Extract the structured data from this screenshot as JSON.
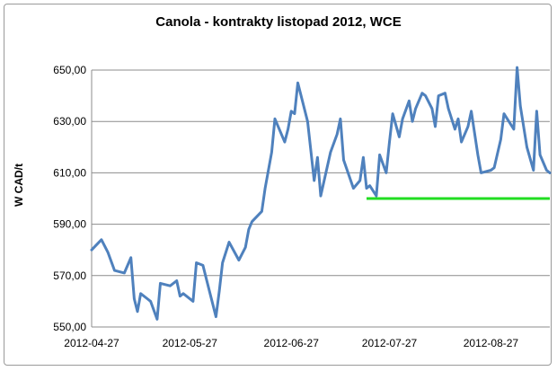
{
  "chart_data": {
    "type": "line",
    "title": "Canola - kontrakty listopad 2012, WCE",
    "ylabel": "W CAD/t",
    "ylim": [
      550,
      650
    ],
    "yticks": [
      "550,00",
      "570,00",
      "590,00",
      "610,00",
      "630,00",
      "650,00"
    ],
    "xticks": [
      "2012-04-27",
      "2012-05-27",
      "2012-06-27",
      "2012-07-27",
      "2012-08-27"
    ],
    "grid": "horizontal",
    "line_color": "#4f81bd",
    "reference_line": {
      "value": 600,
      "from": "2012-07-20",
      "to": "2012-09-14",
      "color": "#22dd22"
    },
    "series": [
      {
        "x": [
          "2012-04-27",
          "2012-04-30",
          "2012-05-02",
          "2012-05-04",
          "2012-05-07",
          "2012-05-09",
          "2012-05-10",
          "2012-05-11",
          "2012-05-12",
          "2012-05-14",
          "2012-05-15",
          "2012-05-17",
          "2012-05-18",
          "2012-05-21",
          "2012-05-23",
          "2012-05-24",
          "2012-05-25",
          "2012-05-28",
          "2012-05-29",
          "2012-05-31",
          "2012-06-01",
          "2012-06-04",
          "2012-06-05",
          "2012-06-06",
          "2012-06-08",
          "2012-06-11",
          "2012-06-13",
          "2012-06-14",
          "2012-06-15",
          "2012-06-18",
          "2012-06-19",
          "2012-06-21",
          "2012-06-22",
          "2012-06-25",
          "2012-06-26",
          "2012-06-27",
          "2012-06-28",
          "2012-06-29",
          "2012-07-02",
          "2012-07-04",
          "2012-07-05",
          "2012-07-06",
          "2012-07-09",
          "2012-07-11",
          "2012-07-12",
          "2012-07-13",
          "2012-07-16",
          "2012-07-18",
          "2012-07-19",
          "2012-07-20",
          "2012-07-21",
          "2012-07-23",
          "2012-07-24",
          "2012-07-26",
          "2012-07-27",
          "2012-07-28",
          "2012-07-30",
          "2012-07-31",
          "2012-08-02",
          "2012-08-03",
          "2012-08-04",
          "2012-08-06",
          "2012-08-07",
          "2012-08-09",
          "2012-08-10",
          "2012-08-11",
          "2012-08-13",
          "2012-08-14",
          "2012-08-16",
          "2012-08-17",
          "2012-08-18",
          "2012-08-20",
          "2012-08-21",
          "2012-08-23",
          "2012-08-24",
          "2012-08-27",
          "2012-08-28",
          "2012-08-30",
          "2012-08-31",
          "2012-09-03",
          "2012-09-04",
          "2012-09-05",
          "2012-09-07",
          "2012-09-09",
          "2012-09-10",
          "2012-09-11",
          "2012-09-13",
          "2012-09-14"
        ],
        "values": [
          580,
          584,
          579,
          572,
          571,
          577,
          561,
          556,
          563,
          561,
          560,
          553,
          567,
          566,
          568,
          562,
          563,
          560,
          575,
          574,
          569,
          554,
          564,
          575,
          583,
          576,
          581,
          588,
          591,
          595,
          604,
          618,
          631,
          622,
          627,
          634,
          633,
          645,
          630,
          607,
          616,
          601,
          618,
          625,
          631,
          615,
          604,
          607,
          616,
          604,
          605,
          601,
          617,
          610,
          622,
          633,
          624,
          631,
          638,
          630,
          635,
          641,
          640,
          635,
          628,
          640,
          641,
          635,
          627,
          631,
          622,
          628,
          634,
          617,
          610,
          611,
          612,
          623,
          633,
          627,
          651,
          636,
          620,
          611,
          634,
          617,
          611,
          610
        ]
      }
    ]
  }
}
